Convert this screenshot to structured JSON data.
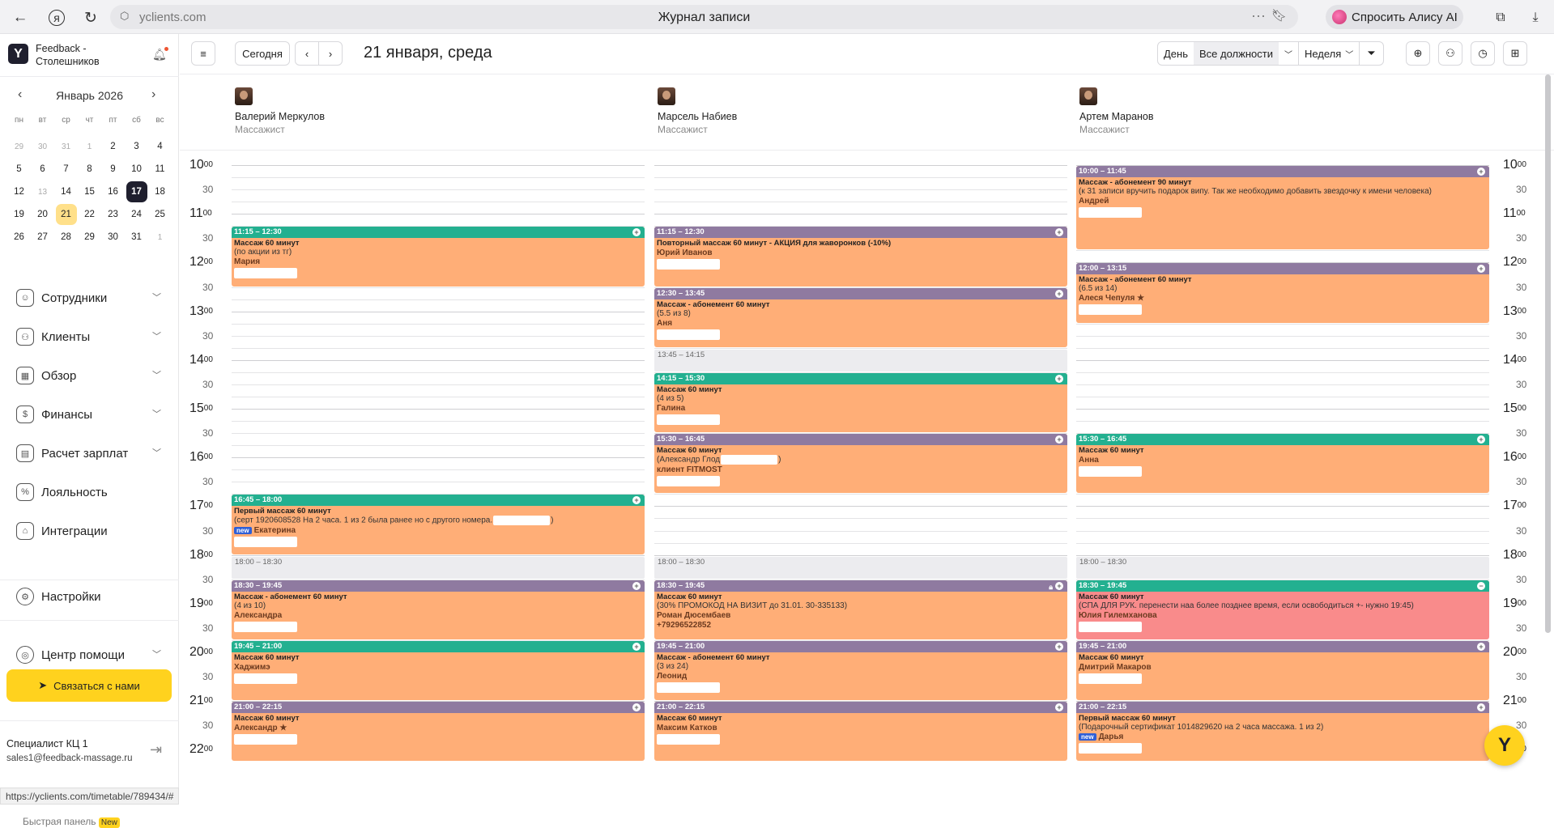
{
  "browser": {
    "url": "yclients.com",
    "page_title": "Журнал записи",
    "alice_label": "Спросить Алису AI",
    "menu_dots": "···",
    "status_url": "https://yclients.com/timetable/789434/#"
  },
  "sidebar": {
    "brand": "Feedback - Столешников",
    "calendar": {
      "month_label": "Январь 2026",
      "weekdays": [
        "пн",
        "вт",
        "ср",
        "чт",
        "пт",
        "сб",
        "вс"
      ],
      "weeks": [
        [
          "29",
          "30",
          "31",
          "1",
          "2",
          "3",
          "4"
        ],
        [
          "5",
          "6",
          "7",
          "8",
          "9",
          "10",
          "11"
        ],
        [
          "12",
          "13",
          "14",
          "15",
          "16",
          "17",
          "18"
        ],
        [
          "19",
          "20",
          "21",
          "22",
          "23",
          "24",
          "25"
        ],
        [
          "26",
          "27",
          "28",
          "29",
          "30",
          "31",
          "1"
        ]
      ],
      "selected": "17",
      "today": "21"
    },
    "nav": [
      {
        "label": "Сотрудники",
        "icon": "person-icon"
      },
      {
        "label": "Клиенты",
        "icon": "people-icon"
      },
      {
        "label": "Обзор",
        "icon": "grid-icon"
      },
      {
        "label": "Финансы",
        "icon": "money-icon"
      },
      {
        "label": "Расчет зарплат",
        "icon": "calculator-icon"
      },
      {
        "label": "Лояльность",
        "icon": "percent-icon"
      },
      {
        "label": "Интеграции",
        "icon": "building-icon"
      }
    ],
    "settings_label": "Настройки",
    "help_label": "Центр помощи",
    "contact_label": "Связаться с нами",
    "user_name": "Специалист КЦ 1",
    "user_email": "sales1@feedback-massage.ru",
    "quick_panel": "Быстрая панель",
    "quick_new": "New"
  },
  "toolbar": {
    "today_label": "Сегодня",
    "date_label": "21 января, среда",
    "day_label": "День",
    "role_filter": "Все должности",
    "week_label": "Неделя"
  },
  "staff": [
    {
      "name": "Валерий Меркулов",
      "role": "Массажист"
    },
    {
      "name": "Марсель Набиев",
      "role": "Массажист"
    },
    {
      "name": "Артем Маранов",
      "role": "Массажист"
    }
  ],
  "time_labels": [
    "10",
    "11",
    "12",
    "13",
    "14",
    "15",
    "16",
    "17",
    "18",
    "19",
    "20",
    "21",
    "22"
  ],
  "minutes_label": "00",
  "half_label": "30",
  "columns": [
    {
      "appointments": [
        {
          "start": "11:15",
          "end": "12:30",
          "time": "11:15 – 12:30",
          "header": "green",
          "title": "Массаж 60 минут",
          "note": "(по акции из тг)",
          "client": "Мария"
        },
        {
          "start": "16:45",
          "end": "18:00",
          "time": "16:45 – 18:00",
          "header": "green",
          "title": "Первый массаж 60 минут",
          "note": "(серт 1920608528 На 2 часа. 1 из 2 была ранее но с другого номера.",
          "note_tail": ")",
          "client": "Екатерина",
          "is_new": true
        },
        {
          "start": "18:30",
          "end": "19:45",
          "time": "18:30 – 19:45",
          "header": "purple",
          "title": "Массаж - абонемент 60 минут",
          "note": "(4 из 10)",
          "client": "Александра"
        },
        {
          "start": "19:45",
          "end": "21:00",
          "time": "19:45 – 21:00",
          "header": "green",
          "title": "Массаж 60 минут",
          "client": "Хаджимэ"
        },
        {
          "start": "21:00",
          "end": "22:15",
          "time": "21:00 – 22:15",
          "header": "purple",
          "title": "Массаж 60 минут",
          "client": "Александр ★"
        }
      ],
      "breaks": [
        {
          "start": "18:00",
          "end": "18:30",
          "label": "18:00 – 18:30"
        }
      ]
    },
    {
      "appointments": [
        {
          "start": "11:15",
          "end": "12:30",
          "time": "11:15 – 12:30",
          "header": "purple",
          "title": "Повторный массаж 60 минут - АКЦИЯ для жаворонков (-10%)",
          "client": "Юрий Иванов"
        },
        {
          "start": "12:30",
          "end": "13:45",
          "time": "12:30 – 13:45",
          "header": "purple",
          "title": "Массаж - абонемент 60 минут",
          "note": "(5.5 из 8)",
          "client": "Аня"
        },
        {
          "start": "14:15",
          "end": "15:30",
          "time": "14:15 – 15:30",
          "header": "green",
          "title": "Массаж 60 минут",
          "note": "(4 из 5)",
          "client": "Галина"
        },
        {
          "start": "15:30",
          "end": "16:45",
          "time": "15:30 – 16:45",
          "header": "purple",
          "title": "Массаж 60 минут",
          "note": "(Александр Глод",
          "note_tail": ")",
          "client": "клиент FITMOST"
        },
        {
          "start": "18:30",
          "end": "19:45",
          "time": "18:30 – 19:45",
          "header": "purple",
          "title": "Массаж 60 минут",
          "note": "(30% ПРОМОКОД НА ВИЗИТ до 31.01. 30-335133)",
          "client": "Роман Дюсембаев",
          "phone": "+79296522852",
          "locked": true
        },
        {
          "start": "19:45",
          "end": "21:00",
          "time": "19:45 – 21:00",
          "header": "purple",
          "title": "Массаж - абонемент 60 минут",
          "note": "(3 из 24)",
          "client": "Леонид"
        },
        {
          "start": "21:00",
          "end": "22:15",
          "time": "21:00 – 22:15",
          "header": "purple",
          "title": "Массаж 60 минут",
          "client": "Максим Катков"
        }
      ],
      "breaks": [
        {
          "start": "13:45",
          "end": "14:15",
          "label": "13:45 – 14:15"
        },
        {
          "start": "18:00",
          "end": "18:30",
          "label": "18:00 – 18:30"
        }
      ]
    },
    {
      "appointments": [
        {
          "start": "10:00",
          "end": "11:45",
          "time": "10:00 – 11:45",
          "header": "purple",
          "title": "Массаж - абонемент 90 минут",
          "note": "(к 31 записи вручить подарок випу. Так же необходимо добавить звездочку к имени человека)",
          "client": "Андрей"
        },
        {
          "start": "12:00",
          "end": "13:15",
          "time": "12:00 – 13:15",
          "header": "purple",
          "title": "Массаж - абонемент 60 минут",
          "note": "(6.5 из 14)",
          "client": "Алеся Чепуля ★"
        },
        {
          "start": "15:30",
          "end": "16:45",
          "time": "15:30 – 16:45",
          "header": "green",
          "title": "Массаж 60 минут",
          "client": "Анна"
        },
        {
          "start": "18:30",
          "end": "19:45",
          "time": "18:30 – 19:45",
          "header": "green",
          "title": "Массаж 60 минут",
          "note": "(СПА ДЛЯ РУК. перенести наа более позднее время, если освободиться +- нужно 19:45)",
          "client": "Юлия Гилемханова",
          "pink": true,
          "minus": true
        },
        {
          "start": "19:45",
          "end": "21:00",
          "time": "19:45 – 21:00",
          "header": "purple",
          "title": "Массаж 60 минут",
          "client": "Дмитрий Макаров"
        },
        {
          "start": "21:00",
          "end": "22:15",
          "time": "21:00 – 22:15",
          "header": "purple",
          "title": "Первый массаж 60 минут",
          "note": "(Подарочный сертификат 1014829620 на 2 часа массажа. 1 из 2)",
          "client": "Дарья",
          "is_new": true
        }
      ],
      "breaks": [
        {
          "start": "18:00",
          "end": "18:30",
          "label": "18:00 – 18:30"
        }
      ]
    }
  ],
  "new_badge": "new",
  "colors": {
    "appt": "#ffae77",
    "header_purple": "#8f7aa0",
    "header_green": "#23b090",
    "accent": "#ffd21e",
    "pink": "#f98b8b"
  }
}
